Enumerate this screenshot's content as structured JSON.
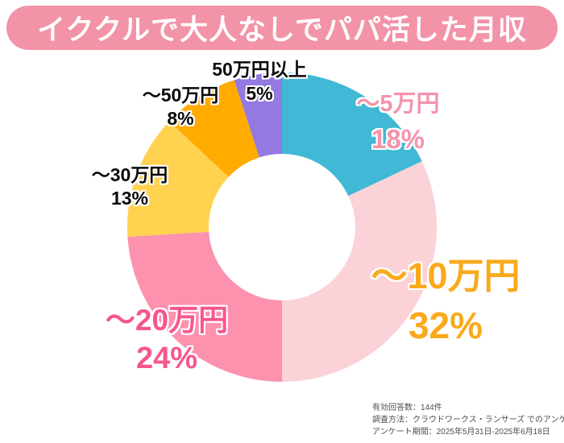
{
  "title": {
    "text": "イククルで大人なしでパパ活した月収"
  },
  "colors": {
    "banner_background": "#f293a8",
    "banner_text": "#ffffff",
    "page_background": "#ffffff",
    "footer_text": "#4d4d4d"
  },
  "chart_data": {
    "type": "pie",
    "subtype": "donut",
    "title": "イククルで大人なしでパパ活した月収",
    "start_angle_deg": 0,
    "direction": "clockwise",
    "inner_radius_ratio": 0.474,
    "legend_position": "none",
    "categories": [
      "〜5万円",
      "〜10万円",
      "〜20万円",
      "〜30万円",
      "〜50万円",
      "50万円以上"
    ],
    "values": [
      18,
      32,
      24,
      13,
      8,
      5
    ],
    "segments": [
      {
        "label": "〜5万円",
        "pct": 18,
        "value_text": "18%",
        "color": "#41b8d5",
        "label_color": "#f493ac"
      },
      {
        "label": "〜10万円",
        "pct": 32,
        "value_text": "32%",
        "color": "#fbd2d8",
        "label_color": "#faa91c"
      },
      {
        "label": "〜20万円",
        "pct": 24,
        "value_text": "24%",
        "color": "#fc92ae",
        "label_color": "#f6568f"
      },
      {
        "label": "〜30万円",
        "pct": 13,
        "value_text": "13%",
        "color": "#ffd24f",
        "label_color": "#0a0a0a"
      },
      {
        "label": "〜50万円",
        "pct": 8,
        "value_text": "8%",
        "color": "#ffab00",
        "label_color": "#0a0a0a"
      },
      {
        "label": "50万円以上",
        "pct": 5,
        "value_text": "5%",
        "color": "#9379e0",
        "label_color": "#0a0a0a"
      }
    ]
  },
  "footer": {
    "lines": [
      "有効回答数：144件",
      "調査方法：クラウドワークス・ランサーズ でのアンケート",
      "アンケート期間：2025年5月31日-2025年6月18日"
    ]
  }
}
